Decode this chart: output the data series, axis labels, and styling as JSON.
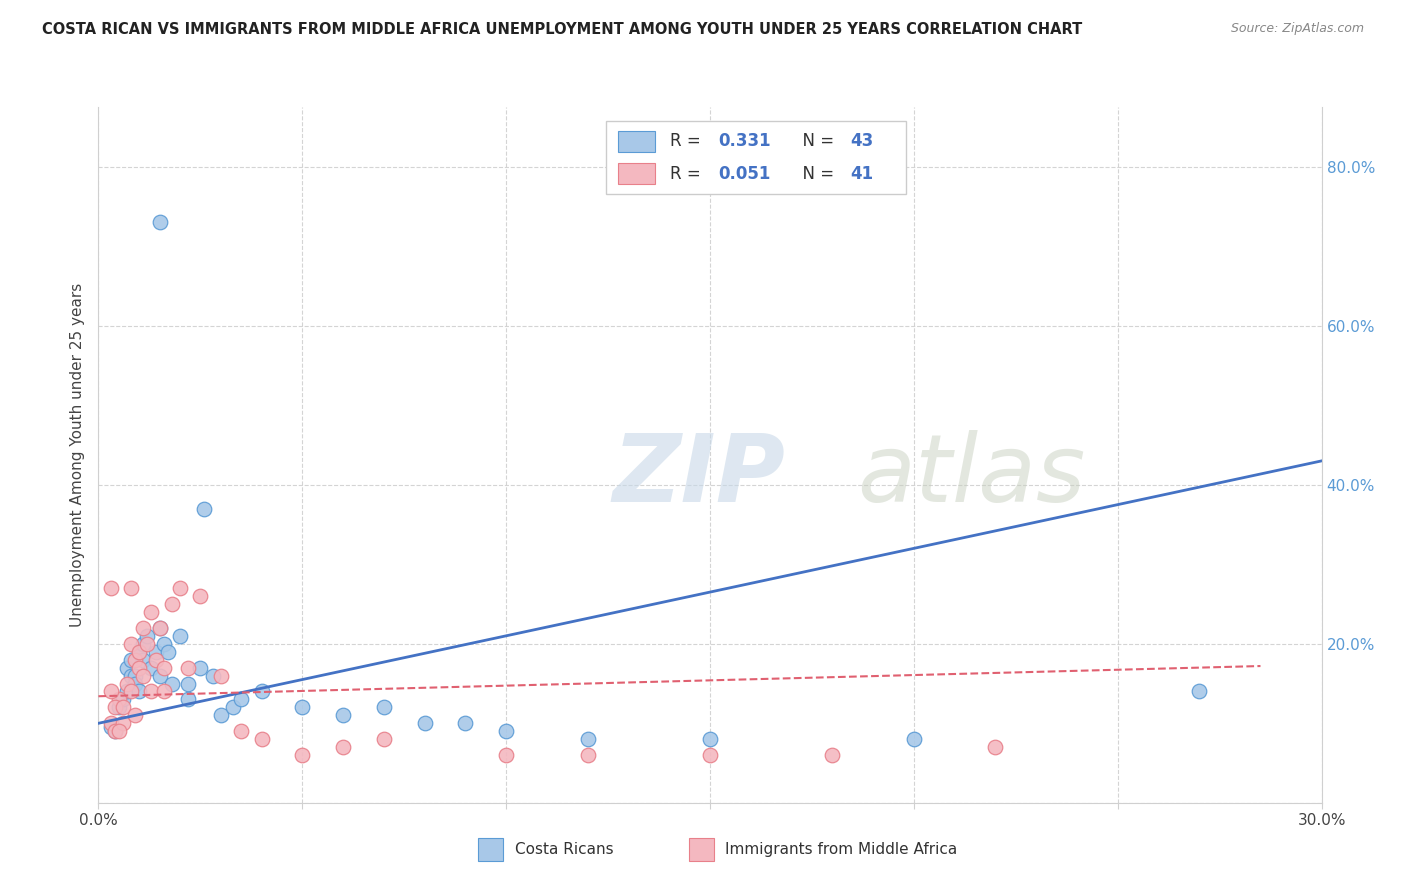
{
  "title": "COSTA RICAN VS IMMIGRANTS FROM MIDDLE AFRICA UNEMPLOYMENT AMONG YOUTH UNDER 25 YEARS CORRELATION CHART",
  "source": "Source: ZipAtlas.com",
  "ylabel": "Unemployment Among Youth under 25 years",
  "xlim": [
    0.0,
    0.3
  ],
  "ylim": [
    0.0,
    0.875
  ],
  "blue_scatter": [
    [
      0.003,
      0.095
    ],
    [
      0.004,
      0.09
    ],
    [
      0.005,
      0.12
    ],
    [
      0.006,
      0.13
    ],
    [
      0.007,
      0.14
    ],
    [
      0.007,
      0.17
    ],
    [
      0.008,
      0.16
    ],
    [
      0.008,
      0.18
    ],
    [
      0.009,
      0.16
    ],
    [
      0.009,
      0.15
    ],
    [
      0.01,
      0.14
    ],
    [
      0.01,
      0.19
    ],
    [
      0.011,
      0.2
    ],
    [
      0.011,
      0.18
    ],
    [
      0.012,
      0.21
    ],
    [
      0.013,
      0.17
    ],
    [
      0.014,
      0.19
    ],
    [
      0.015,
      0.16
    ],
    [
      0.015,
      0.22
    ],
    [
      0.016,
      0.2
    ],
    [
      0.017,
      0.19
    ],
    [
      0.018,
      0.15
    ],
    [
      0.02,
      0.21
    ],
    [
      0.022,
      0.15
    ],
    [
      0.022,
      0.13
    ],
    [
      0.025,
      0.17
    ],
    [
      0.026,
      0.37
    ],
    [
      0.028,
      0.16
    ],
    [
      0.03,
      0.11
    ],
    [
      0.033,
      0.12
    ],
    [
      0.035,
      0.13
    ],
    [
      0.04,
      0.14
    ],
    [
      0.05,
      0.12
    ],
    [
      0.06,
      0.11
    ],
    [
      0.07,
      0.12
    ],
    [
      0.08,
      0.1
    ],
    [
      0.09,
      0.1
    ],
    [
      0.1,
      0.09
    ],
    [
      0.12,
      0.08
    ],
    [
      0.15,
      0.08
    ],
    [
      0.2,
      0.08
    ],
    [
      0.27,
      0.14
    ],
    [
      0.015,
      0.73
    ]
  ],
  "pink_scatter": [
    [
      0.003,
      0.1
    ],
    [
      0.004,
      0.09
    ],
    [
      0.005,
      0.13
    ],
    [
      0.006,
      0.1
    ],
    [
      0.007,
      0.15
    ],
    [
      0.008,
      0.14
    ],
    [
      0.008,
      0.2
    ],
    [
      0.009,
      0.18
    ],
    [
      0.01,
      0.17
    ],
    [
      0.01,
      0.19
    ],
    [
      0.011,
      0.16
    ],
    [
      0.011,
      0.22
    ],
    [
      0.012,
      0.2
    ],
    [
      0.013,
      0.24
    ],
    [
      0.014,
      0.18
    ],
    [
      0.015,
      0.22
    ],
    [
      0.016,
      0.17
    ],
    [
      0.018,
      0.25
    ],
    [
      0.02,
      0.27
    ],
    [
      0.022,
      0.17
    ],
    [
      0.025,
      0.26
    ],
    [
      0.03,
      0.16
    ],
    [
      0.035,
      0.09
    ],
    [
      0.04,
      0.08
    ],
    [
      0.05,
      0.06
    ],
    [
      0.06,
      0.07
    ],
    [
      0.07,
      0.08
    ],
    [
      0.008,
      0.27
    ],
    [
      0.003,
      0.27
    ],
    [
      0.1,
      0.06
    ],
    [
      0.15,
      0.06
    ],
    [
      0.003,
      0.14
    ],
    [
      0.004,
      0.12
    ],
    [
      0.006,
      0.12
    ],
    [
      0.12,
      0.06
    ],
    [
      0.18,
      0.06
    ],
    [
      0.22,
      0.07
    ],
    [
      0.005,
      0.09
    ],
    [
      0.009,
      0.11
    ],
    [
      0.013,
      0.14
    ],
    [
      0.016,
      0.14
    ]
  ],
  "blue_line_x": [
    0.0,
    0.3
  ],
  "blue_line_y": [
    0.1,
    0.43
  ],
  "pink_line_x": [
    0.0,
    0.285
  ],
  "pink_line_y": [
    0.134,
    0.172
  ],
  "blue_color": "#a8c8e8",
  "pink_color": "#f4b8c0",
  "blue_edge_color": "#5b9bd5",
  "pink_edge_color": "#e8808a",
  "blue_line_color": "#4472c4",
  "pink_line_color": "#e06070",
  "label1": "Costa Ricans",
  "label2": "Immigrants from Middle Africa",
  "watermark_zip": "ZIP",
  "watermark_atlas": "atlas",
  "background_color": "#ffffff",
  "grid_color": "#d0d0d0",
  "right_tick_color": "#5b9bd5",
  "legend_R1": "0.331",
  "legend_N1": "43",
  "legend_R2": "0.051",
  "legend_N2": "41"
}
